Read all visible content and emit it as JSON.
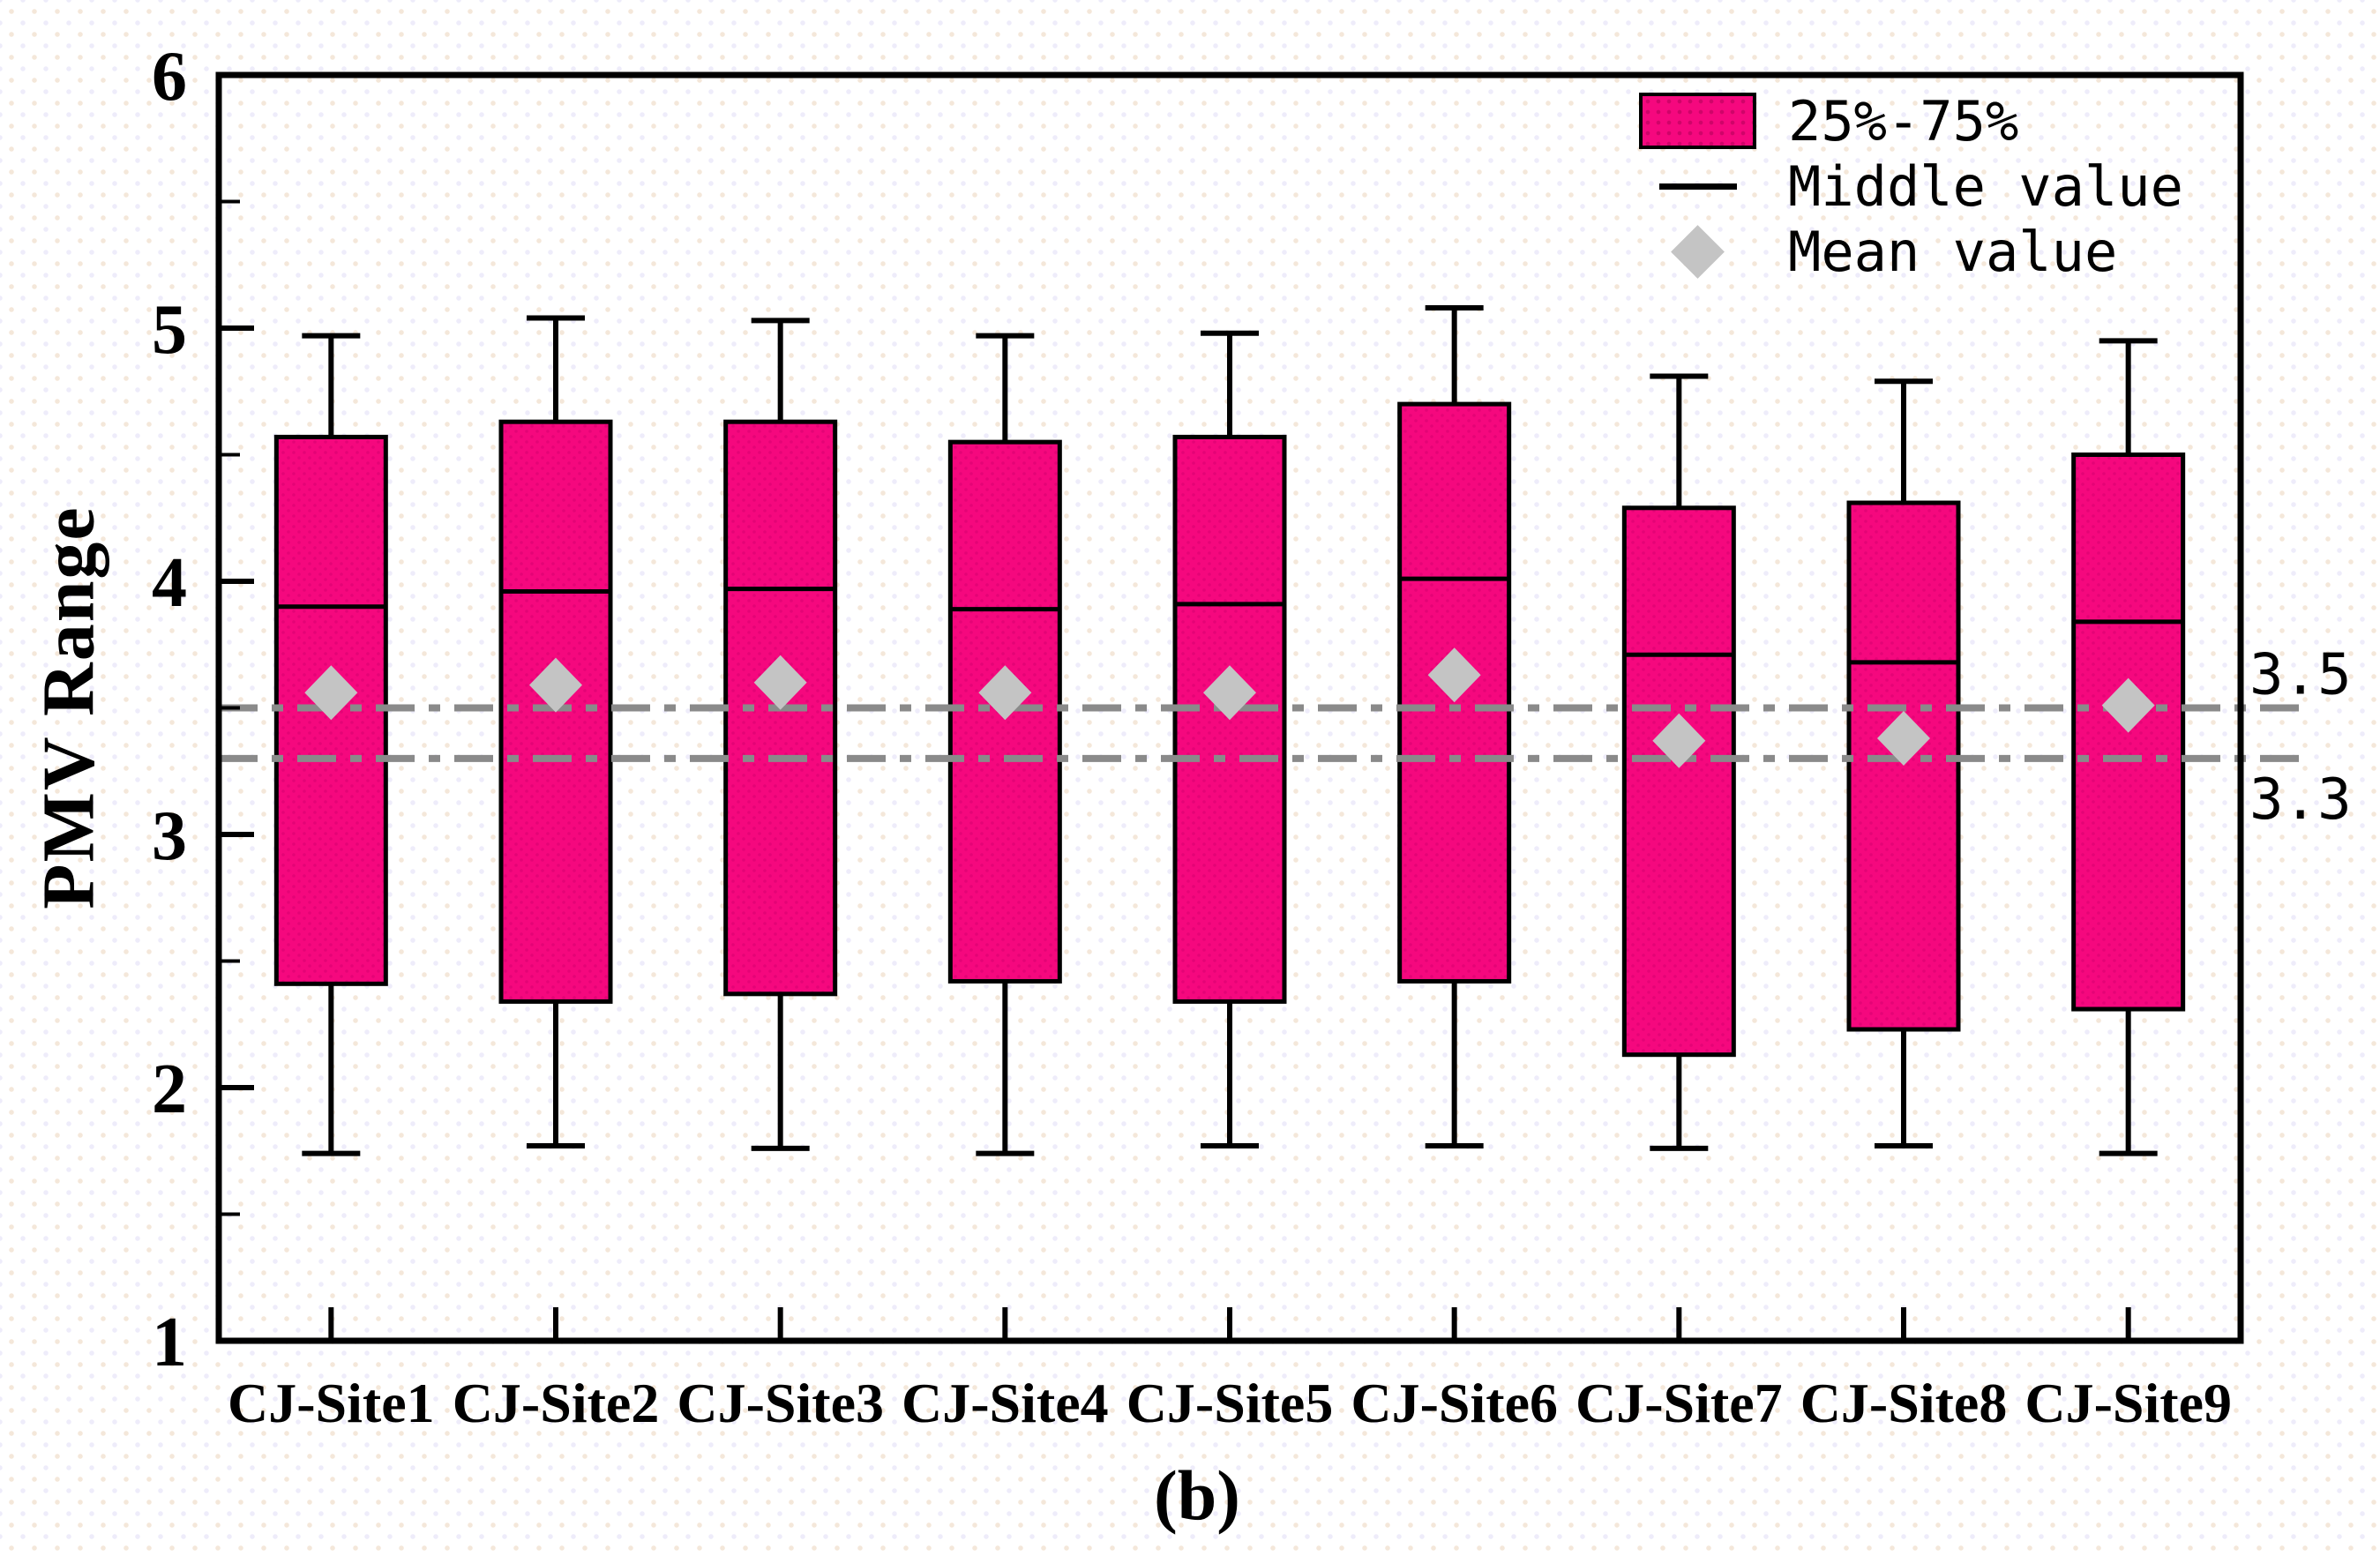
{
  "figure": {
    "caption": "(b)"
  },
  "axes": {
    "y_title": "PMV Range",
    "y_min": 1,
    "y_max": 6,
    "y_major_ticks": [
      1,
      2,
      3,
      4,
      5,
      6
    ],
    "y_minor_ticks": [
      1.5,
      2.5,
      3.5,
      4.5,
      5.5
    ]
  },
  "legend": {
    "items": [
      {
        "symbol": "box-swatch",
        "label": "25%-75%"
      },
      {
        "symbol": "line",
        "label": "Middle value"
      },
      {
        "symbol": "diamond",
        "label": "Mean value"
      }
    ]
  },
  "colors": {
    "box_fill": "#F5087E",
    "box_dot": "#D6006E",
    "box_border": "#000000",
    "median_line": "#000000",
    "whisker": "#000000",
    "mean_diamond": "#C4C4C4",
    "ref_line": "#8A8A8A",
    "text": "#000000"
  },
  "chart_data": {
    "type": "box",
    "title": "",
    "xlabel": "",
    "ylabel": "PMV Range",
    "ylim": [
      1,
      6
    ],
    "grid": false,
    "legend_position": "top-right",
    "categories": [
      "CJ-Site1",
      "CJ-Site2",
      "CJ-Site3",
      "CJ-Site4",
      "CJ-Site5",
      "CJ-Site6",
      "CJ-Site7",
      "CJ-Site8",
      "CJ-Site9"
    ],
    "boxes": [
      {
        "category": "CJ-Site1",
        "whisker_low": 1.74,
        "q1": 2.41,
        "median": 3.9,
        "mean": 3.56,
        "q3": 4.57,
        "whisker_high": 4.97
      },
      {
        "category": "CJ-Site2",
        "whisker_low": 1.77,
        "q1": 2.34,
        "median": 3.96,
        "mean": 3.59,
        "q3": 4.63,
        "whisker_high": 5.04
      },
      {
        "category": "CJ-Site3",
        "whisker_low": 1.76,
        "q1": 2.37,
        "median": 3.97,
        "mean": 3.6,
        "q3": 4.63,
        "whisker_high": 5.03
      },
      {
        "category": "CJ-Site4",
        "whisker_low": 1.74,
        "q1": 2.42,
        "median": 3.89,
        "mean": 3.56,
        "q3": 4.55,
        "whisker_high": 4.97
      },
      {
        "category": "CJ-Site5",
        "whisker_low": 1.77,
        "q1": 2.34,
        "median": 3.91,
        "mean": 3.56,
        "q3": 4.57,
        "whisker_high": 4.98
      },
      {
        "category": "CJ-Site6",
        "whisker_low": 1.77,
        "q1": 2.42,
        "median": 4.01,
        "mean": 3.63,
        "q3": 4.7,
        "whisker_high": 5.08
      },
      {
        "category": "CJ-Site7",
        "whisker_low": 1.76,
        "q1": 2.13,
        "median": 3.71,
        "mean": 3.37,
        "q3": 4.29,
        "whisker_high": 4.81
      },
      {
        "category": "CJ-Site8",
        "whisker_low": 1.77,
        "q1": 2.23,
        "median": 3.68,
        "mean": 3.38,
        "q3": 4.31,
        "whisker_high": 4.79
      },
      {
        "category": "CJ-Site9",
        "whisker_low": 1.74,
        "q1": 2.31,
        "median": 3.84,
        "mean": 3.51,
        "q3": 4.5,
        "whisker_high": 4.95
      }
    ],
    "reference_lines": [
      {
        "value": 3.5,
        "label": "3.5"
      },
      {
        "value": 3.3,
        "label": "3.3"
      }
    ]
  }
}
